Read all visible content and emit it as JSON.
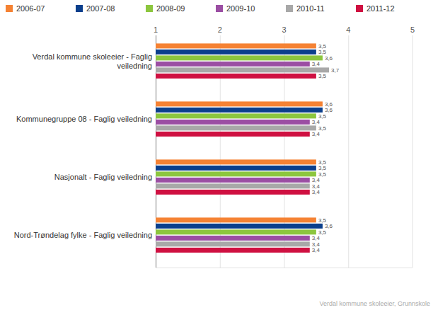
{
  "chart_data": {
    "type": "bar",
    "orientation": "horizontal",
    "data_labels": true,
    "grid": true,
    "legend": "top",
    "xlim": [
      1,
      5
    ],
    "xticks": [
      1,
      2,
      3,
      4,
      5
    ],
    "annotations": [
      "Verdal kommune skoleeier, Grunnskole"
    ],
    "categories": [
      "Verdal kommune skoleeier - Faglig veiledning",
      "Kommunegruppe 08 - Faglig veiledning",
      "Nasjonalt - Faglig veiledning",
      "Nord-Trøndelag fylke - Faglig veiledning"
    ],
    "series": [
      {
        "name": "2006-07",
        "color": "#f58233",
        "values": [
          3.5,
          3.6,
          3.5,
          3.5
        ],
        "value_labels": [
          "3,5",
          "3,6",
          "3,5",
          "3,5"
        ]
      },
      {
        "name": "2007-08",
        "color": "#0b3f8c",
        "values": [
          3.5,
          3.6,
          3.5,
          3.6
        ],
        "value_labels": [
          "3,5",
          "3,6",
          "3,5",
          "3,6"
        ]
      },
      {
        "name": "2008-09",
        "color": "#8cc63e",
        "values": [
          3.6,
          3.5,
          3.5,
          3.5
        ],
        "value_labels": [
          "3,6",
          "3,5",
          "3,5",
          "3,5"
        ]
      },
      {
        "name": "2009-10",
        "color": "#9b4ea3",
        "values": [
          3.4,
          3.4,
          3.4,
          3.4
        ],
        "value_labels": [
          "3,4",
          "3,4",
          "3,4",
          "3,4"
        ]
      },
      {
        "name": "2010-11",
        "color": "#a8a8a8",
        "values": [
          3.7,
          3.5,
          3.4,
          3.4
        ],
        "value_labels": [
          "3,7",
          "3,5",
          "3,4",
          "3,4"
        ]
      },
      {
        "name": "2011-12",
        "color": "#cf1041",
        "values": [
          3.5,
          3.4,
          3.4,
          3.4
        ],
        "value_labels": [
          "3,5",
          "3,4",
          "3,4",
          "3,4"
        ]
      }
    ]
  }
}
